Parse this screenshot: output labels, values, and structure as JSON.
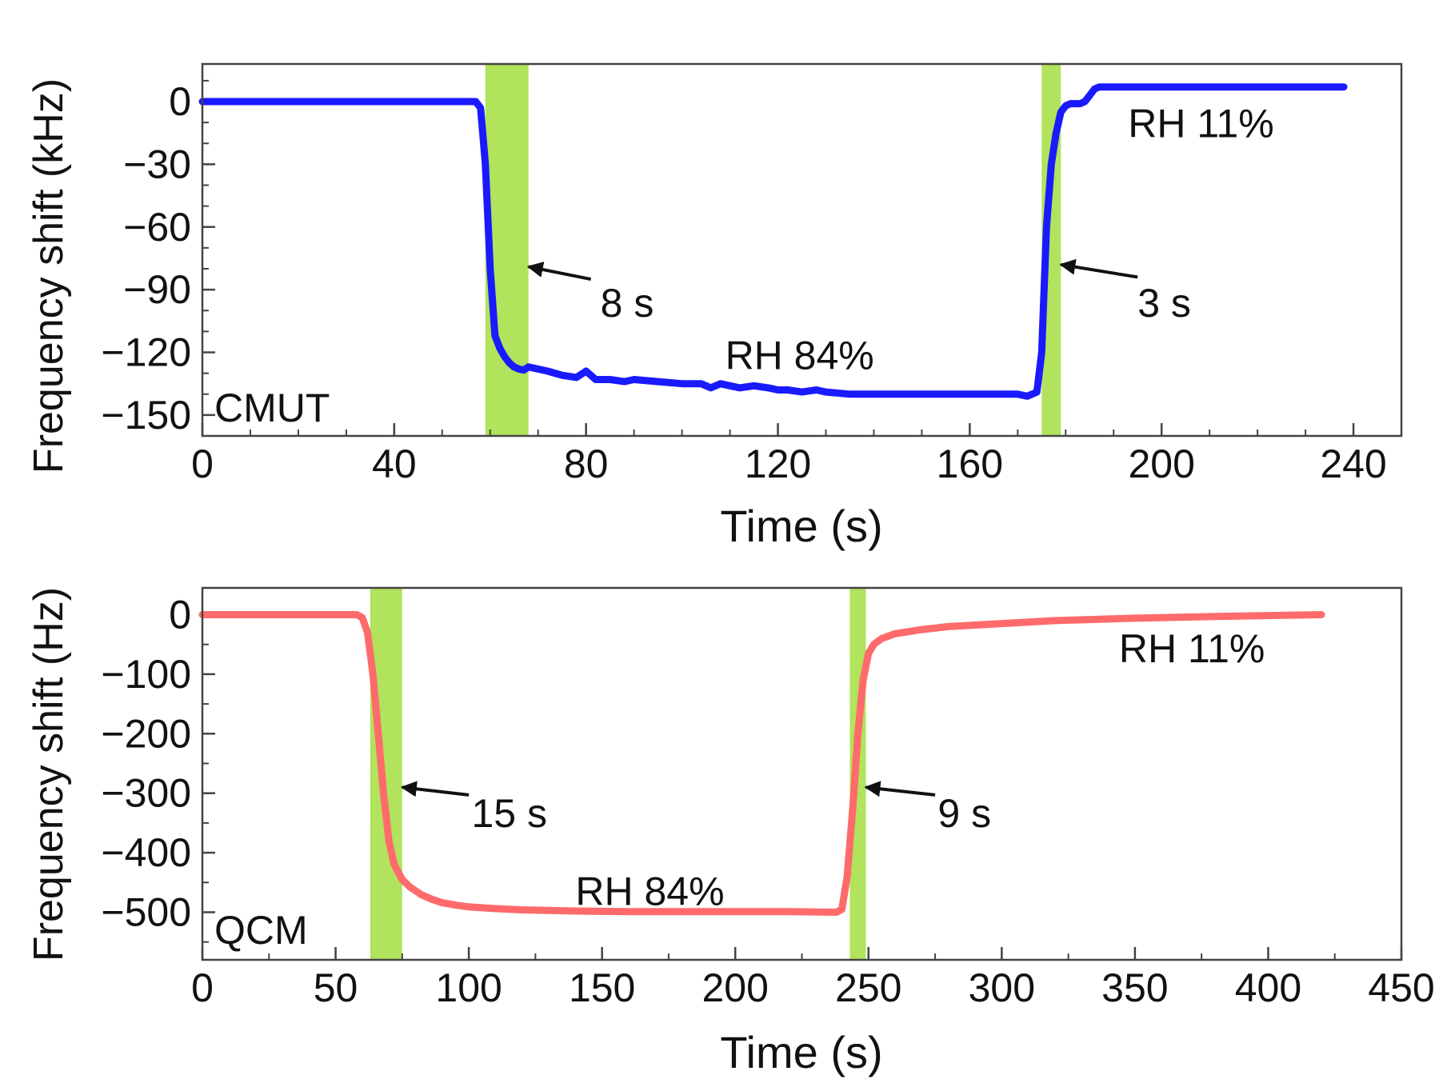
{
  "chart_data": [
    {
      "type": "line",
      "panel_label": "CMUT",
      "xlabel": "Time (s)",
      "ylabel": "Frequency shift (kHz)",
      "xlim": [
        0,
        250
      ],
      "ylim": [
        -160,
        18
      ],
      "xticks": [
        0,
        40,
        80,
        120,
        160,
        200,
        240
      ],
      "yticks": [
        0,
        -30,
        -60,
        -90,
        -120,
        -150
      ],
      "x_minor_step": 10,
      "y_minor_step": 10,
      "series": [
        {
          "name": "CMUT",
          "color": "#1a1aff",
          "x": [
            0,
            57,
            58,
            59,
            60,
            61,
            62,
            63,
            64,
            65,
            66,
            67,
            68,
            70,
            72,
            75,
            78,
            80,
            82,
            85,
            88,
            90,
            95,
            100,
            104,
            106,
            108,
            110,
            112,
            115,
            118,
            120,
            122,
            125,
            128,
            130,
            135,
            140,
            150,
            160,
            170,
            172,
            174,
            175,
            176,
            177,
            178,
            179,
            180,
            181,
            182,
            183,
            184,
            185,
            186,
            187,
            190,
            200,
            220,
            238
          ],
          "y": [
            0,
            0,
            -3,
            -30,
            -80,
            -112,
            -118,
            -122,
            -125,
            -127,
            -128,
            -128.5,
            -127,
            -128,
            -129,
            -131,
            -132,
            -129,
            -133,
            -133,
            -134,
            -133,
            -134,
            -135,
            -135,
            -137,
            -135,
            -136,
            -137,
            -136,
            -137,
            -138,
            -138,
            -139,
            -138,
            -139,
            -140,
            -140,
            -140,
            -140,
            -140,
            -141,
            -139,
            -120,
            -60,
            -30,
            -15,
            -5,
            -2,
            -1,
            -1,
            -1,
            0,
            3,
            6,
            7,
            7,
            7,
            7,
            7
          ]
        }
      ],
      "bands": [
        {
          "x0": 59,
          "x1": 68,
          "color": "#a8e04a"
        },
        {
          "x0": 175,
          "x1": 179,
          "color": "#a8e04a"
        }
      ],
      "annotations": [
        {
          "text": "8 s",
          "arrow_tip": [
            68,
            -79
          ],
          "arrow_tail": [
            81,
            -85
          ],
          "text_at": [
            83,
            -103
          ]
        },
        {
          "text": "3 s",
          "arrow_tip": [
            179,
            -78
          ],
          "arrow_tail": [
            195,
            -84
          ],
          "text_at": [
            195,
            -103
          ]
        },
        {
          "text": "RH 84%",
          "text_at": [
            109,
            -128
          ]
        },
        {
          "text": "RH 11%",
          "text_at": [
            193,
            -17
          ]
        }
      ]
    },
    {
      "type": "line",
      "panel_label": "QCM",
      "xlabel": "Time (s)",
      "ylabel": "Frequency shift (Hz)",
      "xlim": [
        0,
        450
      ],
      "ylim": [
        -580,
        45
      ],
      "xticks": [
        0,
        50,
        100,
        150,
        200,
        250,
        300,
        350,
        400,
        450
      ],
      "yticks": [
        0,
        -100,
        -200,
        -300,
        -400,
        -500
      ],
      "x_minor_step": 25,
      "y_minor_step": 50,
      "series": [
        {
          "name": "QCM",
          "color": "#ff6b6b",
          "x": [
            0,
            58,
            60,
            62,
            64,
            66,
            68,
            70,
            72,
            75,
            78,
            82,
            86,
            90,
            95,
            100,
            110,
            120,
            130,
            140,
            160,
            180,
            200,
            220,
            238,
            240,
            242,
            244,
            246,
            248,
            250,
            252,
            255,
            260,
            270,
            280,
            300,
            320,
            350,
            380,
            420
          ],
          "y": [
            0,
            0,
            -5,
            -30,
            -100,
            -200,
            -300,
            -380,
            -420,
            -445,
            -458,
            -470,
            -478,
            -484,
            -488,
            -491,
            -494,
            -496,
            -497,
            -498,
            -499,
            -499,
            -499,
            -499,
            -500,
            -495,
            -440,
            -330,
            -200,
            -110,
            -65,
            -50,
            -40,
            -32,
            -25,
            -20,
            -15,
            -10,
            -6,
            -3,
            0
          ]
        }
      ],
      "bands": [
        {
          "x0": 63,
          "x1": 75,
          "color": "#a8e04a"
        },
        {
          "x0": 243,
          "x1": 249,
          "color": "#a8e04a"
        }
      ],
      "annotations": [
        {
          "text": "15 s",
          "arrow_tip": [
            75,
            -290
          ],
          "arrow_tail": [
            100,
            -303
          ],
          "text_at": [
            101,
            -357
          ]
        },
        {
          "text": "9 s",
          "arrow_tip": [
            249,
            -290
          ],
          "arrow_tail": [
            275,
            -303
          ],
          "text_at": [
            276,
            -357
          ]
        },
        {
          "text": "RH 84%",
          "text_at": [
            140,
            -488
          ]
        },
        {
          "text": "RH 11%",
          "text_at": [
            344,
            -80
          ]
        }
      ]
    }
  ]
}
